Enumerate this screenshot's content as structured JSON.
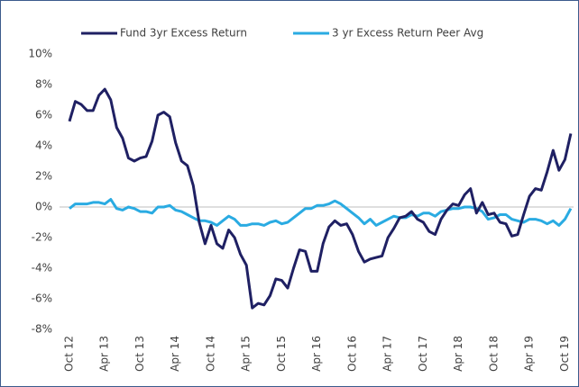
{
  "chart_data": {
    "type": "line",
    "categories": [
      "Oct 12",
      null,
      null,
      null,
      null,
      null,
      "Apr 13",
      null,
      null,
      null,
      null,
      null,
      "Oct 13",
      null,
      null,
      null,
      null,
      null,
      "Apr 14",
      null,
      null,
      null,
      null,
      null,
      "Oct 14",
      null,
      null,
      null,
      null,
      null,
      "Apr 15",
      null,
      null,
      null,
      null,
      null,
      "Oct 15",
      null,
      null,
      null,
      null,
      null,
      "Apr 16",
      null,
      null,
      null,
      null,
      null,
      "Oct 16",
      null,
      null,
      null,
      null,
      null,
      "Apr 17",
      null,
      null,
      null,
      null,
      null,
      "Oct 17",
      null,
      null,
      null,
      null,
      null,
      "Apr 18",
      null,
      null,
      null,
      null,
      null,
      "Oct 18",
      null,
      null,
      null,
      null,
      null,
      "Apr 19",
      null,
      null,
      null,
      null,
      null,
      "Oct 19",
      null
    ],
    "series": [
      {
        "name": "Fund 3yr Excess Return",
        "color": "#1f2063",
        "values": [
          5.6,
          6.9,
          6.7,
          6.3,
          6.3,
          7.3,
          7.7,
          7.0,
          5.2,
          4.5,
          3.2,
          3.0,
          3.2,
          3.3,
          4.3,
          6.0,
          6.2,
          5.9,
          4.2,
          3.0,
          2.7,
          1.4,
          -1.0,
          -2.4,
          -1.2,
          -2.4,
          -2.7,
          -1.5,
          -2.0,
          -3.1,
          -3.8,
          -6.6,
          -6.3,
          -6.4,
          -5.8,
          -4.7,
          -4.8,
          -5.3,
          -4.0,
          -2.8,
          -2.9,
          -4.2,
          -4.2,
          -2.4,
          -1.3,
          -0.9,
          -1.2,
          -1.1,
          -1.8,
          -2.9,
          -3.6,
          -3.4,
          -3.3,
          -3.2,
          -2.0,
          -1.4,
          -0.7,
          -0.6,
          -0.3,
          -0.8,
          -1.0,
          -1.6,
          -1.8,
          -0.8,
          -0.2,
          0.2,
          0.1,
          0.8,
          1.2,
          -0.4,
          0.3,
          -0.5,
          -0.4,
          -1.0,
          -1.1,
          -1.9,
          -1.8,
          -0.5,
          0.7,
          1.2,
          1.1,
          2.3,
          3.7,
          2.4,
          3.1,
          4.8
        ]
      },
      {
        "name": "3 yr Excess Return Peer Avg",
        "color": "#2aabe2",
        "values": [
          -0.1,
          0.2,
          0.2,
          0.2,
          0.3,
          0.3,
          0.2,
          0.5,
          -0.1,
          -0.2,
          0.0,
          -0.1,
          -0.3,
          -0.3,
          -0.4,
          0.0,
          0.0,
          0.1,
          -0.2,
          -0.3,
          -0.5,
          -0.7,
          -0.9,
          -0.9,
          -1.0,
          -1.2,
          -0.9,
          -0.6,
          -0.8,
          -1.2,
          -1.2,
          -1.1,
          -1.1,
          -1.2,
          -1.0,
          -0.9,
          -1.1,
          -1.0,
          -0.7,
          -0.4,
          -0.1,
          -0.1,
          0.1,
          0.1,
          0.2,
          0.4,
          0.2,
          -0.1,
          -0.4,
          -0.7,
          -1.1,
          -0.8,
          -1.2,
          -1.0,
          -0.8,
          -0.6,
          -0.7,
          -0.7,
          -0.5,
          -0.6,
          -0.4,
          -0.4,
          -0.6,
          -0.3,
          -0.2,
          -0.1,
          -0.1,
          0.0,
          0.0,
          -0.1,
          -0.3,
          -0.8,
          -0.7,
          -0.5,
          -0.5,
          -0.8,
          -0.9,
          -1.0,
          -0.8,
          -0.8,
          -0.9,
          -1.1,
          -0.9,
          -1.2,
          -0.8,
          -0.1
        ]
      }
    ],
    "ylim": [
      -8,
      10
    ],
    "yticks": [
      {
        "value": -8,
        "label": "-8%"
      },
      {
        "value": -6,
        "label": "-6%"
      },
      {
        "value": -4,
        "label": "-4%"
      },
      {
        "value": -2,
        "label": "-2%"
      },
      {
        "value": 0,
        "label": "0%"
      },
      {
        "value": 2,
        "label": "2%"
      },
      {
        "value": 4,
        "label": "4%"
      },
      {
        "value": 6,
        "label": "6%"
      },
      {
        "value": 8,
        "label": "8%"
      },
      {
        "value": 10,
        "label": "10%"
      }
    ],
    "grid": false,
    "legend": "top"
  }
}
